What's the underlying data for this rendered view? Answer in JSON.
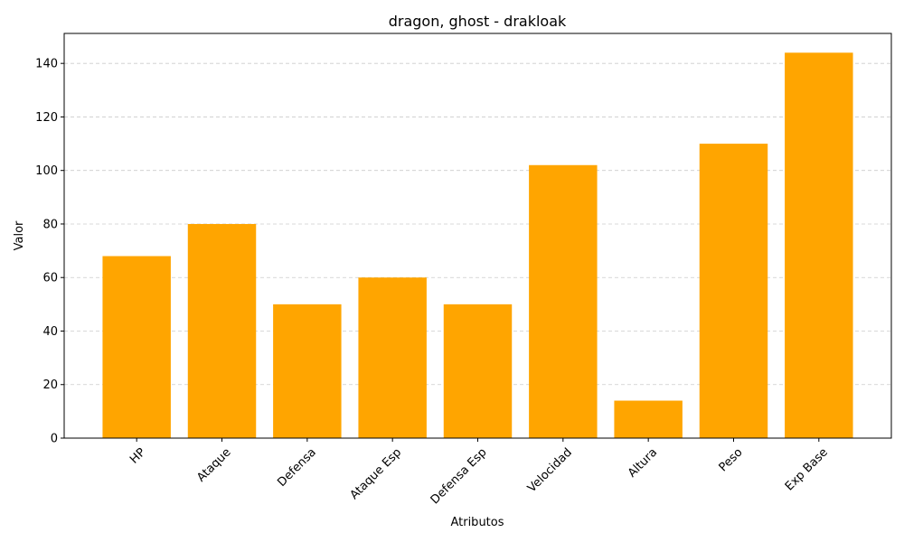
{
  "chart_data": {
    "type": "bar",
    "title": "dragon, ghost - drakloak",
    "xlabel": "Atributos",
    "ylabel": "Valor",
    "categories": [
      "HP",
      "Ataque",
      "Defensa",
      "Ataque Esp",
      "Defensa Esp",
      "Velocidad",
      "Altura",
      "Peso",
      "Exp Base"
    ],
    "values": [
      68,
      80,
      50,
      60,
      50,
      102,
      14,
      110,
      144
    ],
    "ylim": [
      0,
      151.2
    ],
    "yticks": [
      0,
      20,
      40,
      60,
      80,
      100,
      120,
      140
    ],
    "grid": "y-dashed",
    "bar_color": "#ffa500",
    "xtick_rotation": 45
  }
}
